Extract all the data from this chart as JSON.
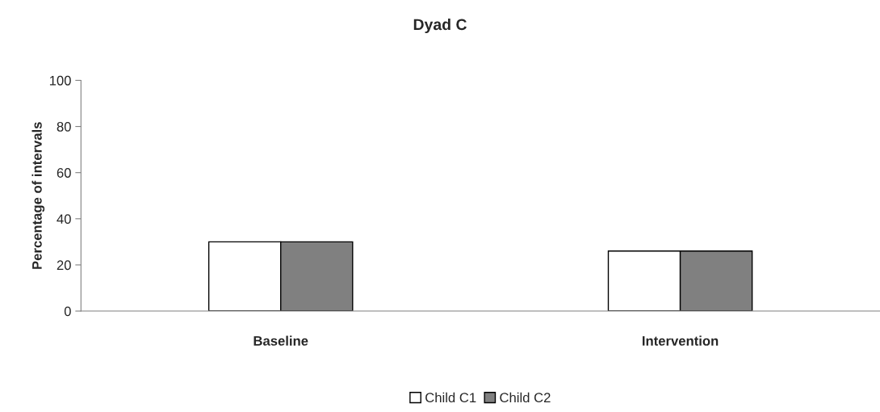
{
  "chart_data": {
    "type": "bar",
    "title": "Dyad C",
    "ylabel": "Percentage of intervals",
    "categories": [
      "Baseline",
      "Intervention"
    ],
    "series": [
      {
        "name": "Child C1",
        "color": "#ffffff",
        "values": [
          30,
          26
        ]
      },
      {
        "name": "Child C2",
        "color": "#808080",
        "values": [
          30,
          26
        ]
      }
    ],
    "ylim": [
      0,
      100
    ],
    "yticks": [
      0,
      20,
      40,
      60,
      80,
      100
    ],
    "grid": false,
    "legend": "bottom"
  }
}
